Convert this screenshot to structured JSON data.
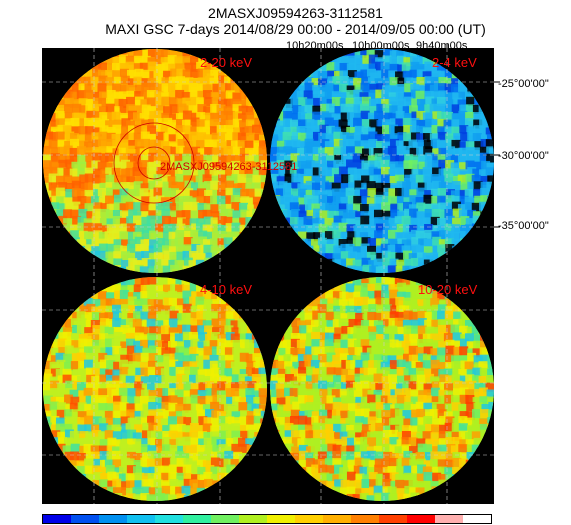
{
  "title_line1": "2MASXJ09594263-3112581",
  "title_line2": "MAXI GSC 7-days 2014/08/29 00:00 - 2014/09/05 00:00 (UT)",
  "ra_labels": [
    "10h20m00s",
    "10h00m00s",
    "9h40m00s"
  ],
  "dec_labels": [
    "-25°00'00\"",
    "-30°00'00\"",
    "-35°00'00\""
  ],
  "source_label": "2MASXJ09594263-3112581",
  "panels": [
    {
      "band": "2-20 keV",
      "base_color": "#ffd200"
    },
    {
      "band": "2-4 keV",
      "base_color": "#1aa0f0"
    },
    {
      "band": "4-10 keV",
      "base_color": "#b8ef20"
    },
    {
      "band": "10-20 keV",
      "base_color": "#a0ee30"
    }
  ],
  "colorbar": [
    "#0000e8",
    "#0050f0",
    "#0090f0",
    "#10c0f0",
    "#20e0e0",
    "#30f0a0",
    "#70f060",
    "#b0f020",
    "#f0f000",
    "#ffd000",
    "#ffb000",
    "#ff8000",
    "#ff4000",
    "#ff0000",
    "#ffb0b0",
    "#ffffff"
  ]
}
